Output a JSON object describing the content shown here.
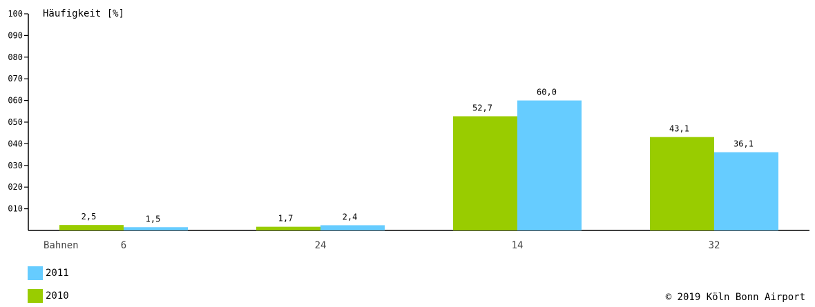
{
  "chart_data": {
    "type": "bar",
    "ylabel": "Häufigkeit [%]",
    "xlabel": "Bahnen",
    "categories": [
      "6",
      "24",
      "14",
      "32"
    ],
    "ylim": [
      0,
      100
    ],
    "yticks": [
      "100",
      "090",
      "080",
      "070",
      "060",
      "050",
      "040",
      "030",
      "020",
      "010"
    ],
    "series": [
      {
        "name": "2010",
        "color": "#99cc00",
        "values": [
          2.5,
          1.7,
          52.7,
          43.1
        ],
        "labels": [
          "2,5",
          "1,7",
          "52,7",
          "43,1"
        ]
      },
      {
        "name": "2011",
        "color": "#66ccff",
        "values": [
          1.5,
          2.4,
          60.0,
          36.1
        ],
        "labels": [
          "1,5",
          "2,4",
          "60,0",
          "36,1"
        ]
      }
    ],
    "legend": [
      {
        "name": "2011",
        "color": "#66ccff"
      },
      {
        "name": "2010",
        "color": "#99cc00"
      }
    ],
    "grid": false,
    "legend_position": "bottom-left"
  },
  "footer": {
    "copyright": "© 2019 Köln Bonn Airport"
  }
}
